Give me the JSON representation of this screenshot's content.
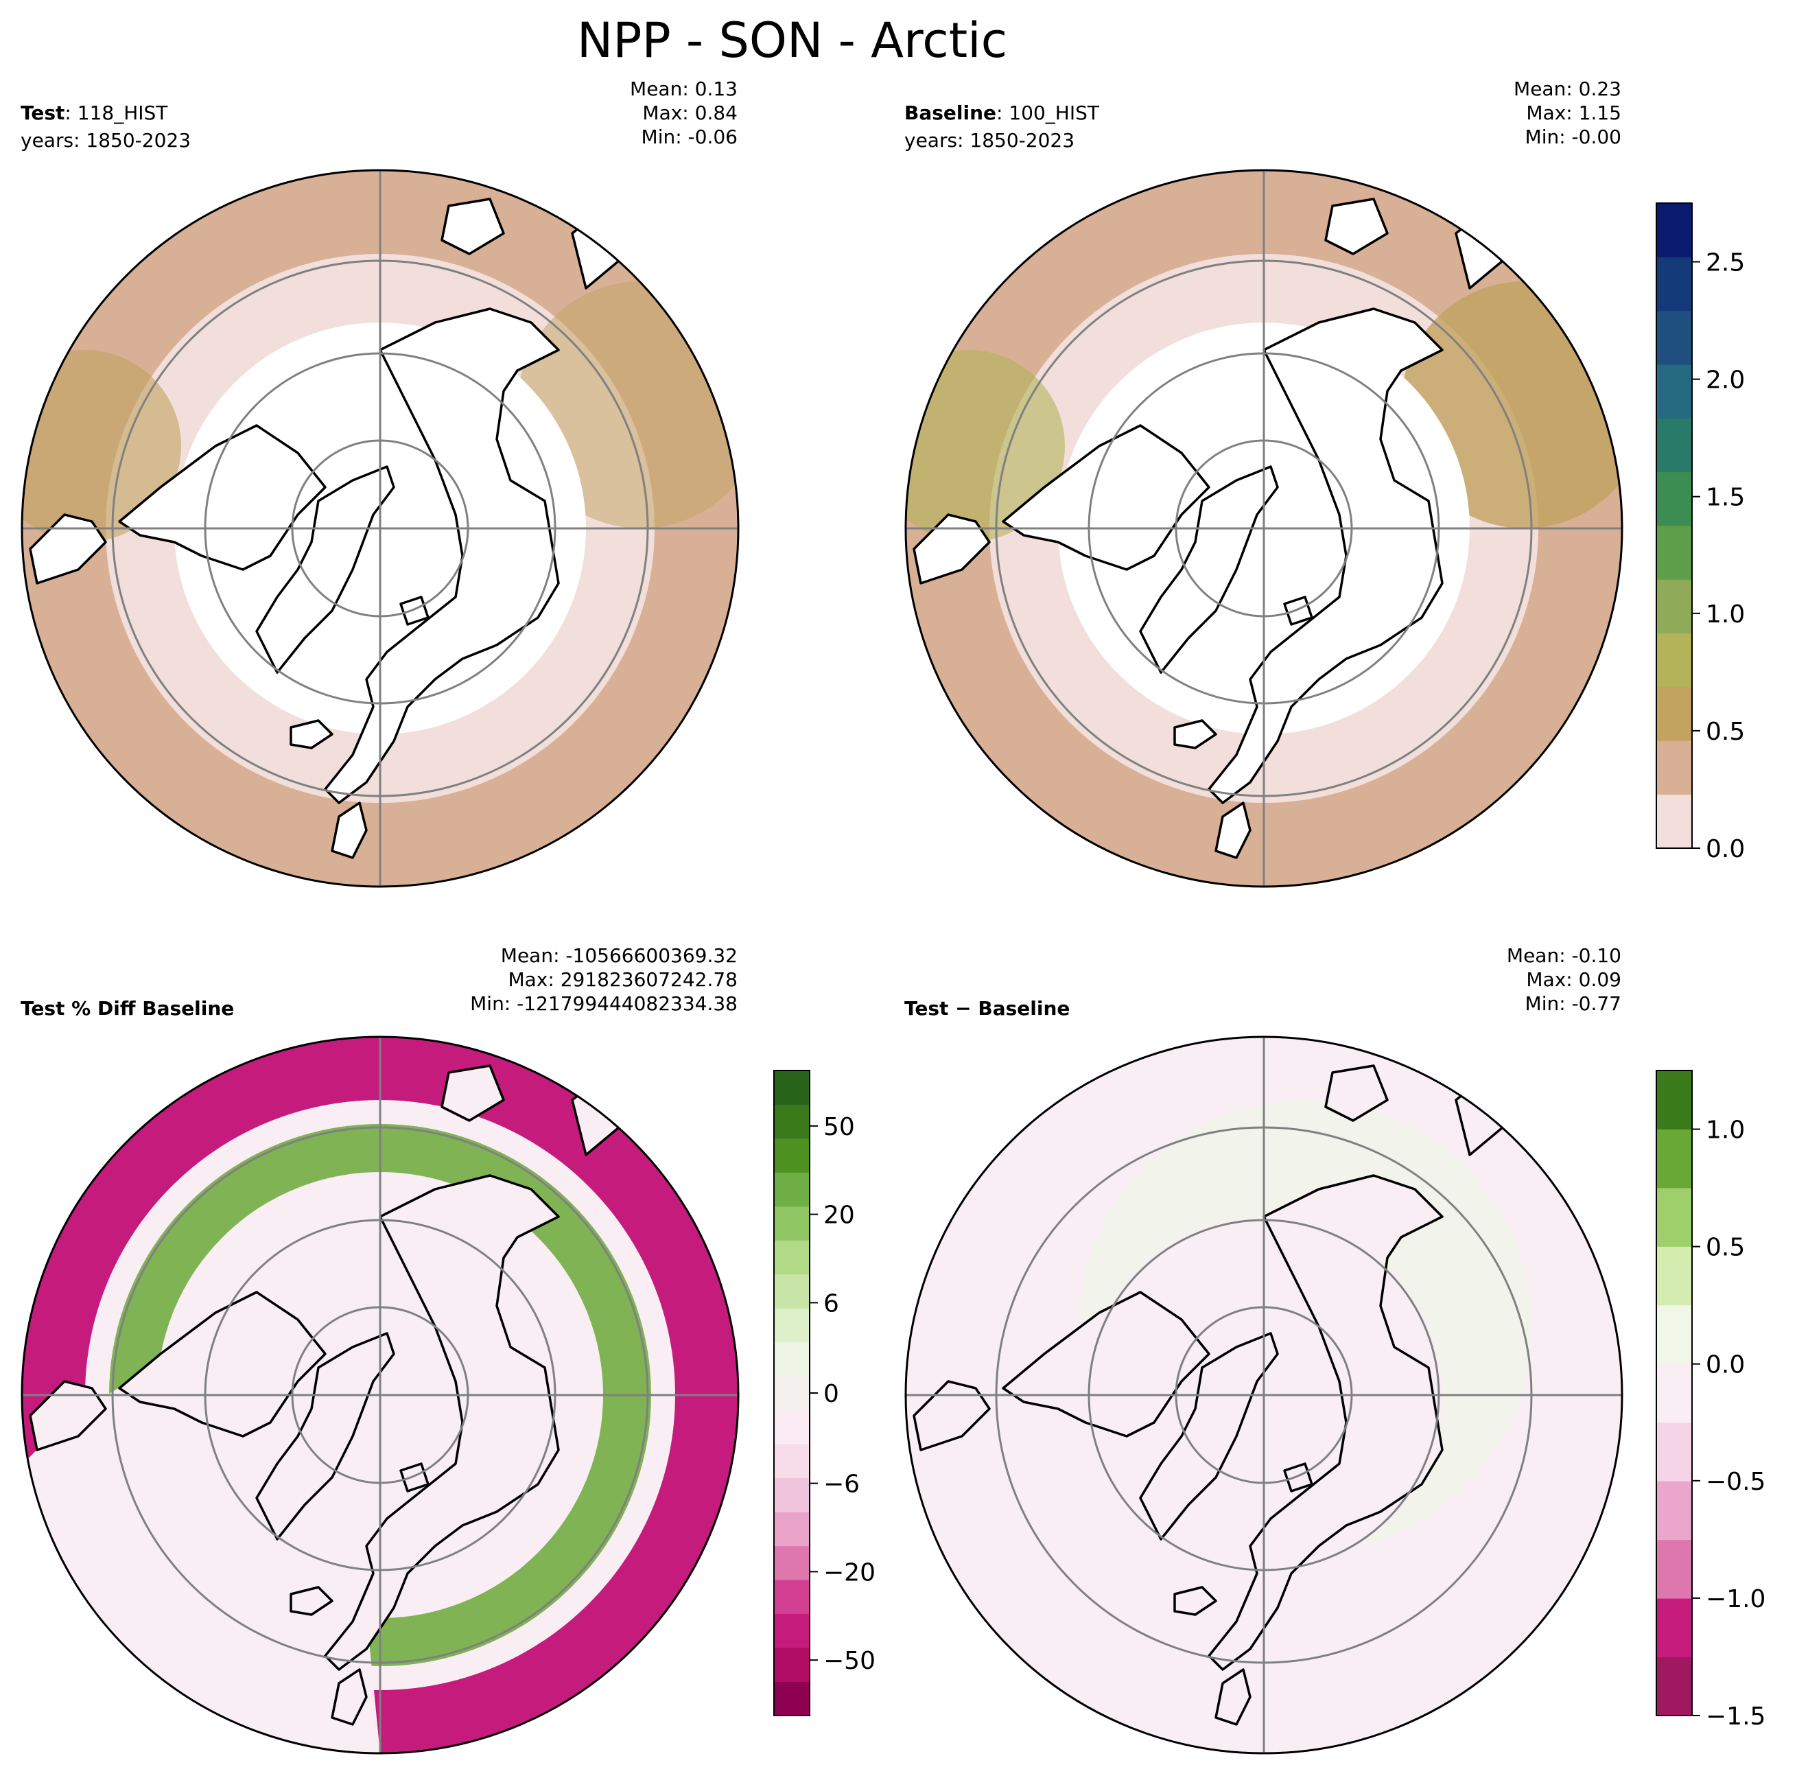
{
  "title": "NPP - SON - Arctic",
  "panels": [
    {
      "id": "test",
      "label_bold": "Test",
      "label_rest": ": 118_HIST",
      "years": "years: 1850-2023",
      "mean": "Mean:  0.13",
      "max": "Max:  0.84",
      "min": "Min: -0.06"
    },
    {
      "id": "baseline",
      "label_bold": "Baseline",
      "label_rest": ": 100_HIST",
      "years": "years: 1850-2023",
      "mean": "Mean:  0.23",
      "max": "Max:  1.15",
      "min": "Min: -0.00"
    },
    {
      "id": "pct-diff",
      "label_bold": "Test % Diff Baseline",
      "label_rest": "",
      "years": "",
      "mean": "Mean: -10566600369.32",
      "max": "Max: 291823607242.78",
      "min": "Min: -121799444082334.38"
    },
    {
      "id": "diff",
      "label_bold": "Test",
      "label_rest": " − Baseline",
      "years": "",
      "mean": "Mean: -0.10",
      "max": "Max:  0.09",
      "min": "Min: -0.77"
    }
  ],
  "colorbars": {
    "main": {
      "ticks": [
        "0.0",
        "0.5",
        "1.0",
        "1.5",
        "2.0",
        "2.5"
      ],
      "colors": [
        "#f2dfdb",
        "#d7b096",
        "#c2a35f",
        "#b3b45a",
        "#8fab5a",
        "#5e9f4a",
        "#3b8d52",
        "#2a7a6a",
        "#256a80",
        "#1f4f7e",
        "#143a7a",
        "#0a1a6e"
      ]
    },
    "pct": {
      "ticks": [
        "50",
        "20",
        "6",
        "0",
        "−6",
        "−20",
        "−50"
      ],
      "colors": [
        "#8e0152",
        "#b00c63",
        "#c51b7d",
        "#d33f93",
        "#de77ae",
        "#e9a3c9",
        "#f1c4de",
        "#f7dcea",
        "#fbebf3",
        "#f3f0ee",
        "#eef5e6",
        "#def0c9",
        "#c9e6a8",
        "#b1db86",
        "#8fc563",
        "#6fae45",
        "#4d9221",
        "#3a7a1b",
        "#276419"
      ]
    },
    "diff": {
      "ticks": [
        "1.0",
        "0.5",
        "0.0",
        "−0.5",
        "−1.0",
        "−1.5"
      ],
      "colors": [
        "#a0185f",
        "#c51b7d",
        "#de77ae",
        "#eaa6cb",
        "#f6d4e8",
        "#f8eef4",
        "#f0f6e8",
        "#d4ecb0",
        "#9fcf6a",
        "#6aa836",
        "#3a7a1b"
      ]
    }
  },
  "map_colors": {
    "coast": "#000000",
    "grid": "#808080",
    "low": "#f2dfdb",
    "mid": "#d7b096",
    "high": "#c2a35f",
    "green": "#b3b45a",
    "pct_pink": "#c51b7d",
    "pct_light": "#f8eef4",
    "pct_green": "#6aa836",
    "diff_bg": "#f8eef4",
    "diff_green": "#f0f6e8"
  }
}
